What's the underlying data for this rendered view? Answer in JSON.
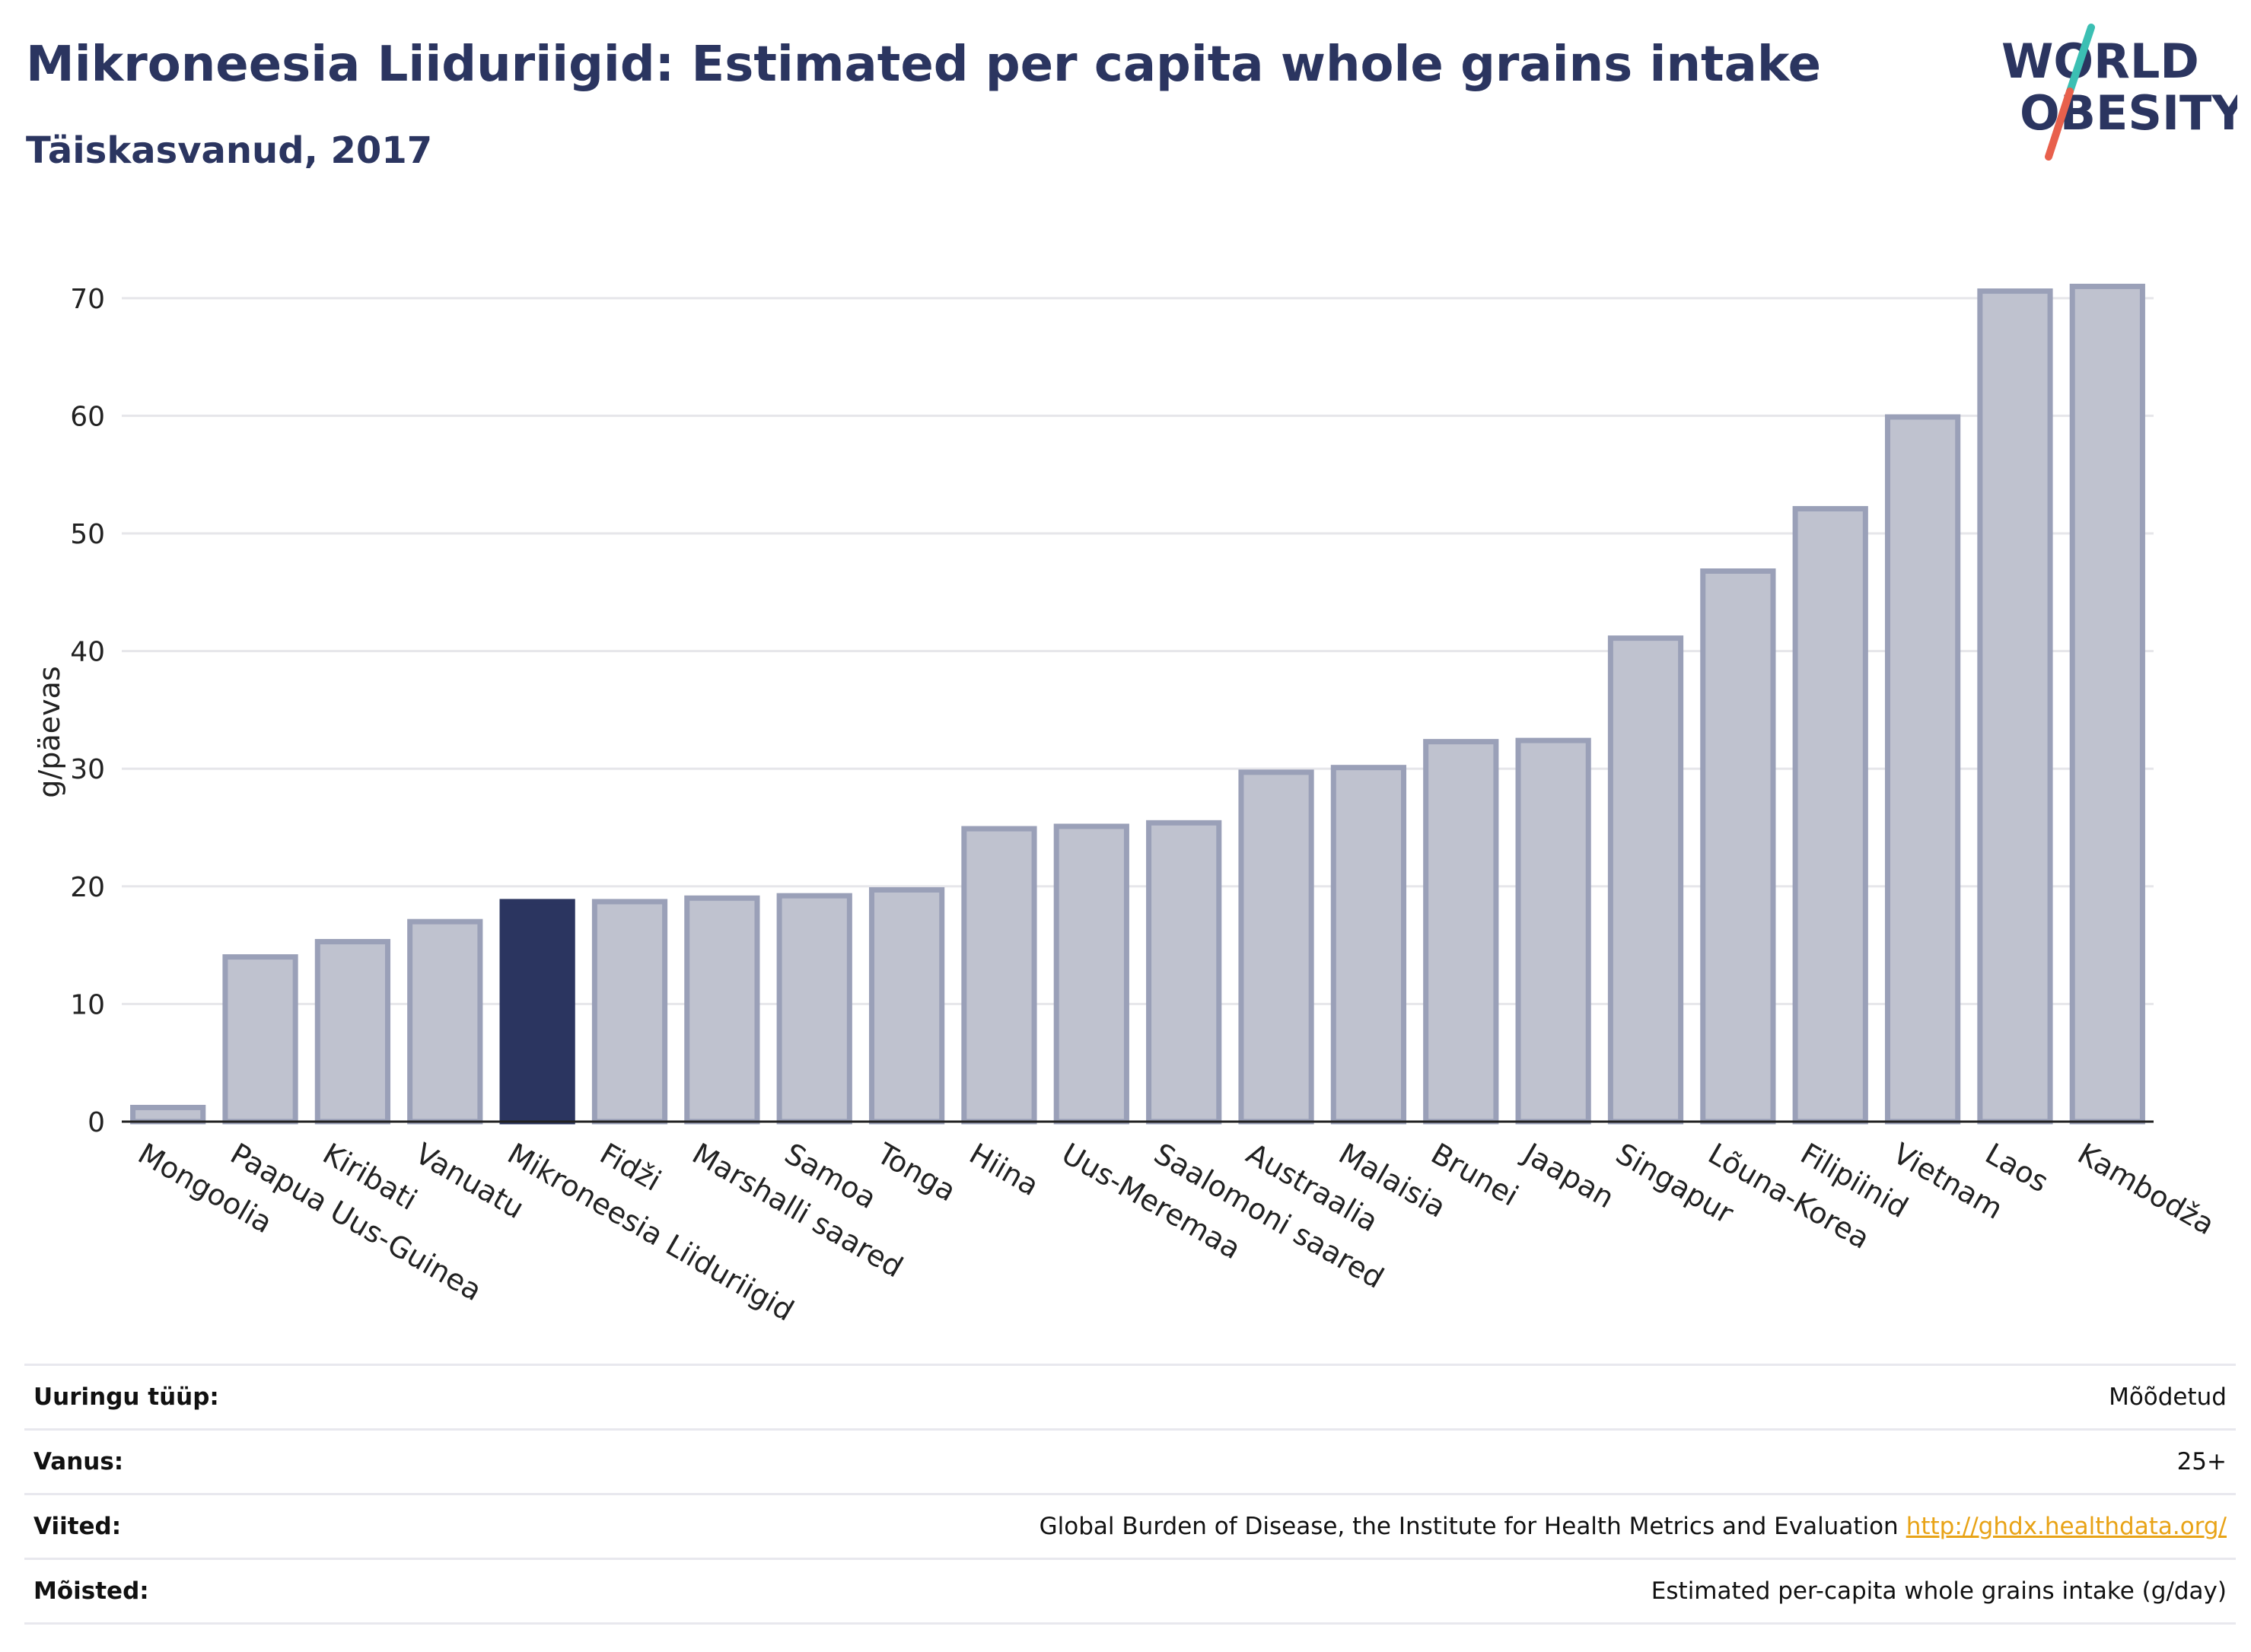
{
  "header": {
    "title": "Mikroneesia Liiduriigid: Estimated per capita whole grains intake",
    "subtitle": "Täiskasvanud, 2017"
  },
  "logo": {
    "line1": "WORLD",
    "line2": "OBESITY",
    "colors": {
      "text": "#2b3560",
      "slash_top": "#3bbfb3",
      "slash_bottom": "#e8604c"
    }
  },
  "chart_data": {
    "type": "bar",
    "ylabel": "g/päevas",
    "ylim": [
      0,
      74
    ],
    "yticks": [
      0,
      10,
      20,
      30,
      40,
      50,
      60,
      70
    ],
    "grid": true,
    "highlight": "Mikroneesia Liiduriigid",
    "colors": {
      "bar": "#bfc2cf",
      "bar_edge": "#9aa0b8",
      "highlight": "#2b3560",
      "grid": "#e6e6ea"
    },
    "categories": [
      "Mongoolia",
      "Paapua Uus-Guinea",
      "Kiribati",
      "Vanuatu",
      "Mikroneesia Liiduriigid",
      "Fidži",
      "Marshalli saared",
      "Samoa",
      "Tonga",
      "Hiina",
      "Uus-Meremaa",
      "Saalomoni saared",
      "Austraalia",
      "Malaisia",
      "Brunei",
      "Jaapan",
      "Singapur",
      "Lõuna-Korea",
      "Filipiinid",
      "Vietnam",
      "Laos",
      "Kambodža"
    ],
    "values": [
      1.2,
      14.0,
      15.3,
      17.0,
      18.7,
      18.7,
      19.0,
      19.2,
      19.7,
      24.9,
      25.1,
      25.4,
      29.7,
      30.1,
      32.3,
      32.4,
      41.1,
      46.8,
      52.1,
      59.9,
      70.6,
      71.0
    ]
  },
  "meta": {
    "rows": [
      {
        "label": "Uuringu tüüp:",
        "value": "Mõõdetud",
        "link": ""
      },
      {
        "label": "Vanus:",
        "value": "25+",
        "link": ""
      },
      {
        "label": "Viited:",
        "value": "Global Burden of Disease, the Institute for Health Metrics and Evaluation",
        "link": "http://ghdx.healthdata.org/"
      },
      {
        "label": "Mõisted:",
        "value": "Estimated per-capita whole grains intake (g/day)",
        "link": ""
      }
    ]
  }
}
